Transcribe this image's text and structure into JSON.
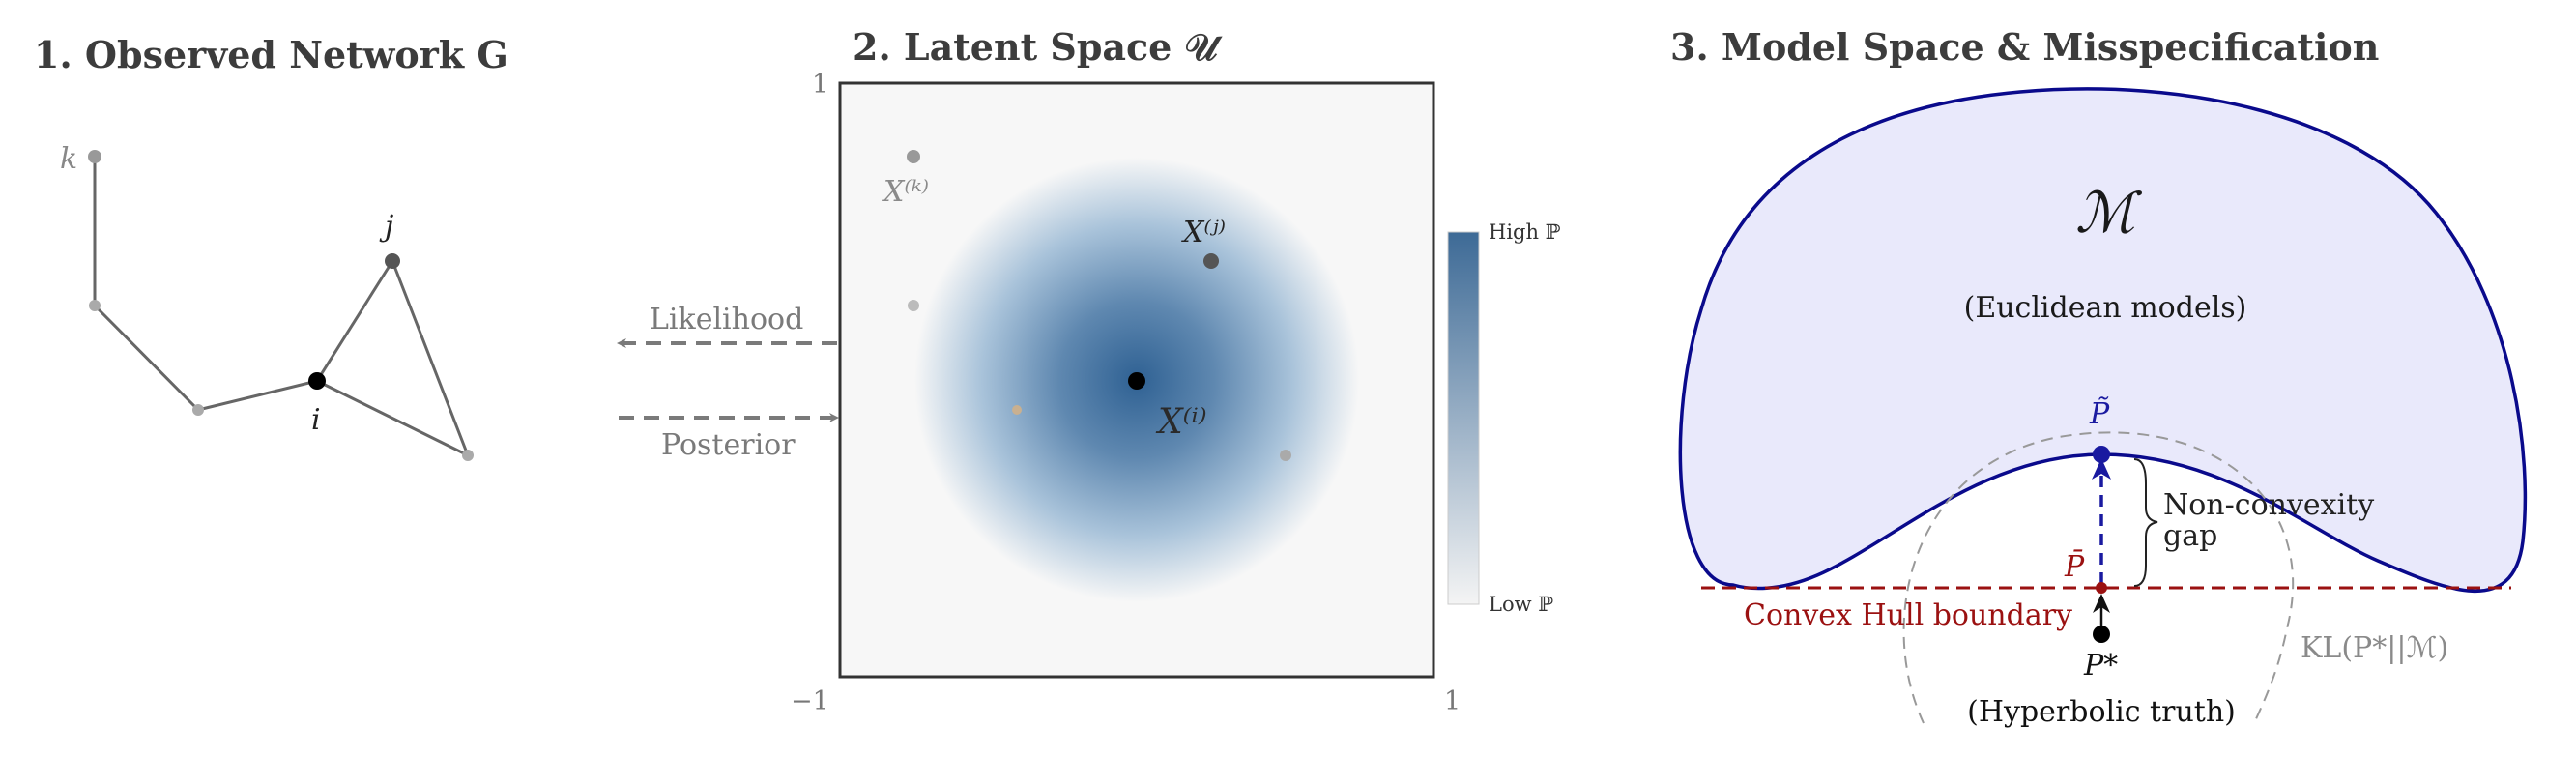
{
  "panels": {
    "network": {
      "title": "1. Observed Network G"
    },
    "latent": {
      "title": "2. Latent Space 𝒰"
    },
    "model": {
      "title": "3. Model Space & Misspecification"
    }
  },
  "network": {
    "node_labels": {
      "k": "k",
      "j": "j",
      "i": "i"
    }
  },
  "arrows": {
    "likelihood": "Likelihood",
    "posterior": "Posterior"
  },
  "latent": {
    "axis": {
      "y_top": "1",
      "x_left": "−1",
      "x_right": "1"
    },
    "point_labels": {
      "k": "X⁽ᵏ⁾",
      "j": "X⁽ʲ⁾",
      "i": "X⁽ⁱ⁾"
    },
    "colorbar": {
      "high": "High ℙ",
      "low": "Low ℙ",
      "high_color": "#3d6a96",
      "low_color": "#f4f4f4"
    }
  },
  "model": {
    "symbol": "ℳ",
    "subtitle": "(Euclidean models)",
    "p_tilde": "P̃",
    "p_bar": "P̄",
    "p_star": "P*",
    "gap_label_1": "Non-convexity",
    "gap_label_2": "gap",
    "hull_label": "Convex Hull boundary",
    "kl_label": "KL(P*||ℳ)",
    "truth_label": "(Hyperbolic truth)",
    "colors": {
      "blob_fill": "#e8e8fa",
      "blob_stroke": "#0a0a8c",
      "hull": "#9b1111",
      "arrow": "#1a1aa0"
    }
  }
}
